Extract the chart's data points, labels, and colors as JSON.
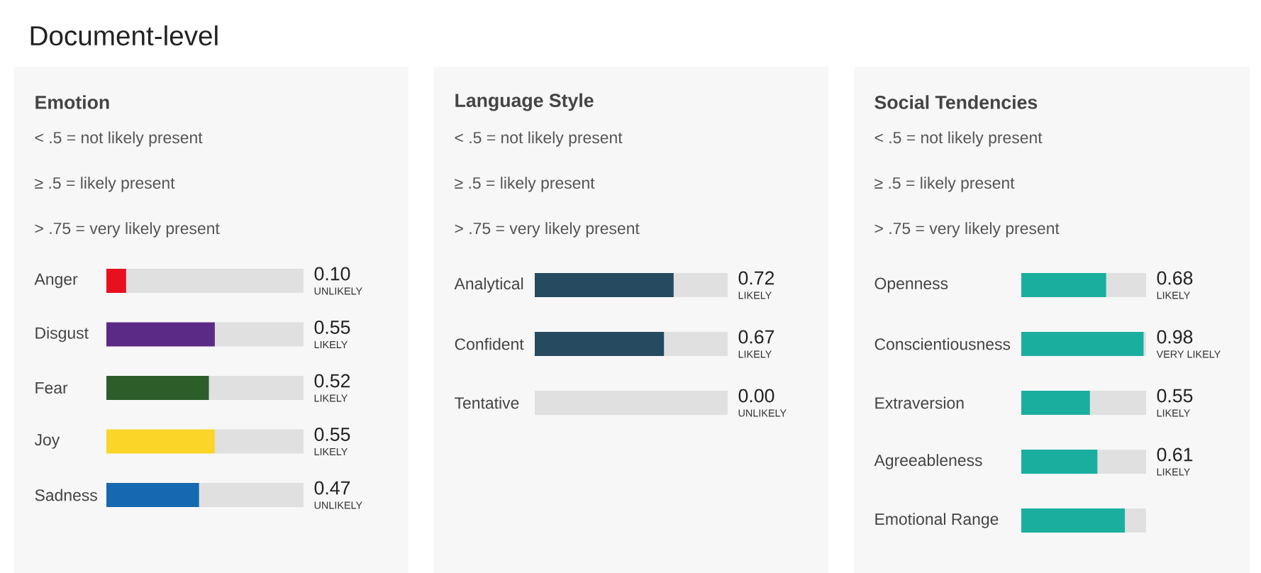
{
  "chart_data": [
    {
      "type": "other",
      "title": "Document-level"
    },
    {
      "type": "bar",
      "title": "Emotion",
      "orientation": "horizontal",
      "stacked": true,
      "xlim": [
        0,
        1
      ],
      "tick_labels": "y",
      "categories": [
        "Anger",
        "Disgust",
        "Fear",
        "Joy",
        "Sadness"
      ],
      "series": [
        {
          "colors": [
            "#e8101e",
            "#5b2a86",
            "#2d5e2a",
            "#fbd629",
            "#1668b0"
          ],
          "values": [
            0.1,
            0.55,
            0.52,
            0.55,
            0.47
          ],
          "value_labels": [
            "0.10",
            "0.55",
            "0.52",
            "0.55",
            "0.47"
          ]
        },
        {
          "color": "#e0e0e0",
          "values": [
            0.9,
            0.45,
            0.48,
            0.45,
            0.53
          ],
          "value_labels": [
            "UNLIKELY",
            "LIKELY",
            "LIKELY",
            "LIKELY",
            "UNLIKELY"
          ]
        }
      ],
      "annotations": [
        "< .5 = not likely present",
        "≥ .5 = likely present",
        "> .75 = very likely present"
      ]
    },
    {
      "type": "bar",
      "title": "Language Style",
      "orientation": "horizontal",
      "stacked": true,
      "xlim": [
        0,
        1
      ],
      "tick_labels": "y",
      "categories": [
        "Analytical",
        "Confident",
        "Tentative"
      ],
      "series": [
        {
          "color": "#264a60",
          "values": [
            0.72,
            0.67,
            0.0
          ],
          "value_labels": [
            "0.72",
            "0.67",
            "0.00"
          ]
        },
        {
          "color": "#e0e0e0",
          "values": [
            0.28,
            0.33,
            1.0
          ],
          "value_labels": [
            "LIKELY",
            "LIKELY",
            "UNLIKELY"
          ]
        }
      ],
      "annotations": [
        "< .5 = not likely present",
        "≥ .5 = likely present",
        "> .75 = very likely present"
      ]
    },
    {
      "type": "bar",
      "title": "Social Tendencies",
      "orientation": "horizontal",
      "stacked": true,
      "xlim": [
        0,
        1
      ],
      "tick_labels": "y",
      "categories": [
        "Openness",
        "Conscientiousness",
        "Extraversion",
        "Agreeableness",
        "Emotional Range"
      ],
      "series": [
        {
          "color": "#1aae9f",
          "values": [
            0.68,
            0.98,
            0.55,
            0.61,
            0.83
          ],
          "value_labels": [
            "0.68",
            "0.98",
            "0.55",
            "0.61",
            null
          ]
        },
        {
          "color": "#e0e0e0",
          "values": [
            0.32,
            0.02,
            0.45,
            0.39,
            0.17
          ],
          "value_labels": [
            "LIKELY",
            "VERY LIKELY",
            "LIKELY",
            "LIKELY",
            null
          ]
        }
      ],
      "annotations": [
        "< .5 = not likely present",
        "≥ .5 = likely present",
        "> .75 = very likely present"
      ]
    }
  ]
}
